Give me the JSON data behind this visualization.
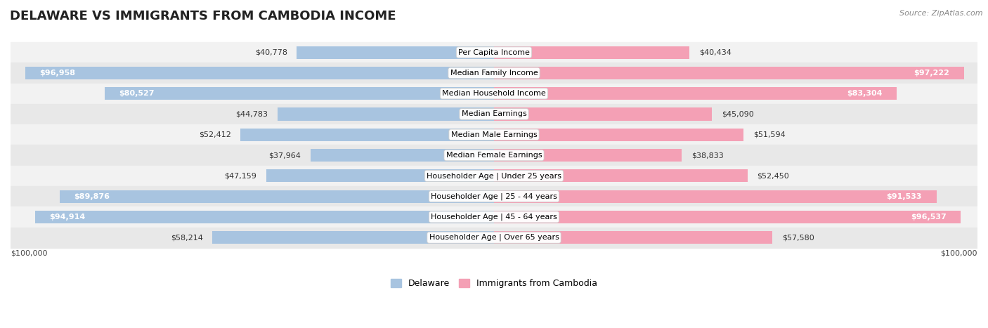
{
  "title": "DELAWARE VS IMMIGRANTS FROM CAMBODIA INCOME",
  "source": "Source: ZipAtlas.com",
  "categories": [
    "Per Capita Income",
    "Median Family Income",
    "Median Household Income",
    "Median Earnings",
    "Median Male Earnings",
    "Median Female Earnings",
    "Householder Age | Under 25 years",
    "Householder Age | 25 - 44 years",
    "Householder Age | 45 - 64 years",
    "Householder Age | Over 65 years"
  ],
  "delaware_values": [
    40778,
    96958,
    80527,
    44783,
    52412,
    37964,
    47159,
    89876,
    94914,
    58214
  ],
  "cambodia_values": [
    40434,
    97222,
    83304,
    45090,
    51594,
    38833,
    52450,
    91533,
    96537,
    57580
  ],
  "delaware_labels": [
    "$40,778",
    "$96,958",
    "$80,527",
    "$44,783",
    "$52,412",
    "$37,964",
    "$47,159",
    "$89,876",
    "$94,914",
    "$58,214"
  ],
  "cambodia_labels": [
    "$40,434",
    "$97,222",
    "$83,304",
    "$45,090",
    "$51,594",
    "$38,833",
    "$52,450",
    "$91,533",
    "$96,537",
    "$57,580"
  ],
  "max_value": 100000,
  "delaware_color": "#a8c4e0",
  "cambodia_color": "#f4a0b5",
  "bar_height": 0.62,
  "background_color": "#ffffff",
  "row_colors": [
    "#f2f2f2",
    "#e8e8e8"
  ],
  "legend_delaware": "Delaware",
  "legend_cambodia": "Immigrants from Cambodia",
  "xlabel_left": "$100,000",
  "xlabel_right": "$100,000",
  "title_fontsize": 13,
  "label_fontsize": 8,
  "category_fontsize": 8
}
